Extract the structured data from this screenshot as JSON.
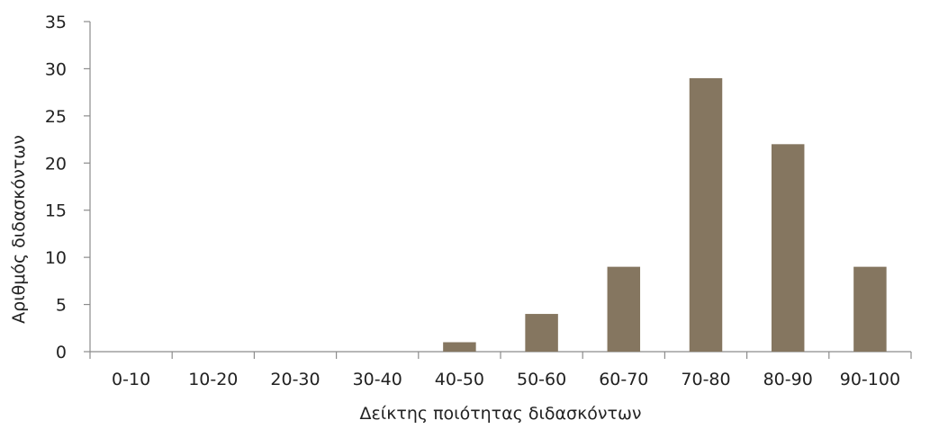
{
  "chart_data": {
    "type": "bar",
    "categories": [
      "0-10",
      "10-20",
      "20-30",
      "30-40",
      "40-50",
      "50-60",
      "60-70",
      "70-80",
      "80-90",
      "90-100"
    ],
    "values": [
      0,
      0,
      0,
      0,
      1,
      4,
      9,
      29,
      22,
      9
    ],
    "xlabel": "Δείκτης ποιότητας διδασκόντων",
    "ylabel": "Αριθμός διδασκόντων",
    "ylim": [
      0,
      35
    ],
    "yticks": [
      0,
      5,
      10,
      15,
      20,
      25,
      30,
      35
    ],
    "grid": false,
    "legend": "none",
    "bar_color": "#857660",
    "axis_color": "#8c8c8c"
  }
}
